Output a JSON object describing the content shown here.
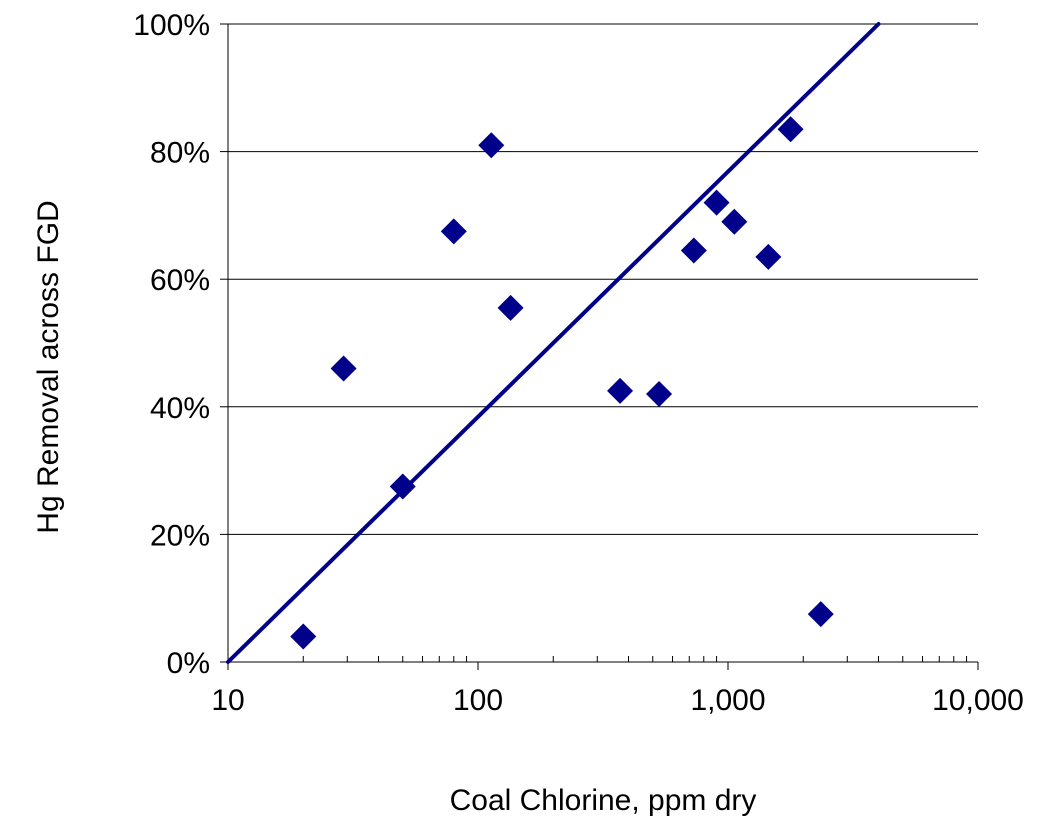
{
  "chart_data": {
    "type": "scatter",
    "title": "",
    "xlabel": "Coal Chlorine, ppm dry",
    "ylabel": "Hg Removal across FGD",
    "x_scale": "log",
    "xlim": [
      10,
      10000
    ],
    "ylim": [
      0,
      1
    ],
    "x_ticks": [
      10,
      100,
      1000,
      10000
    ],
    "x_tick_labels": [
      "10",
      "100",
      "1,000",
      "10,000"
    ],
    "y_ticks": [
      0,
      0.2,
      0.4,
      0.6,
      0.8,
      1.0
    ],
    "y_tick_labels": [
      "0%",
      "20%",
      "40%",
      "60%",
      "80%",
      "100%"
    ],
    "grid": "horizontal major gridlines",
    "legend": "none",
    "series": [
      {
        "marker": "diamond",
        "color": "#00008B",
        "points": [
          {
            "x": 20,
            "y": 0.04
          },
          {
            "x": 29,
            "y": 0.46
          },
          {
            "x": 50,
            "y": 0.275
          },
          {
            "x": 80,
            "y": 0.675
          },
          {
            "x": 113,
            "y": 0.81
          },
          {
            "x": 135,
            "y": 0.555
          },
          {
            "x": 370,
            "y": 0.425
          },
          {
            "x": 530,
            "y": 0.42
          },
          {
            "x": 730,
            "y": 0.645
          },
          {
            "x": 900,
            "y": 0.72
          },
          {
            "x": 1060,
            "y": 0.69
          },
          {
            "x": 1450,
            "y": 0.635
          },
          {
            "x": 1780,
            "y": 0.835
          },
          {
            "x": 2350,
            "y": 0.075
          }
        ]
      }
    ],
    "trendline": {
      "type": "logarithmic",
      "color": "#00008B",
      "from": {
        "x": 10,
        "y": 0
      },
      "to": {
        "x": 4000,
        "y": 1.0
      }
    }
  }
}
